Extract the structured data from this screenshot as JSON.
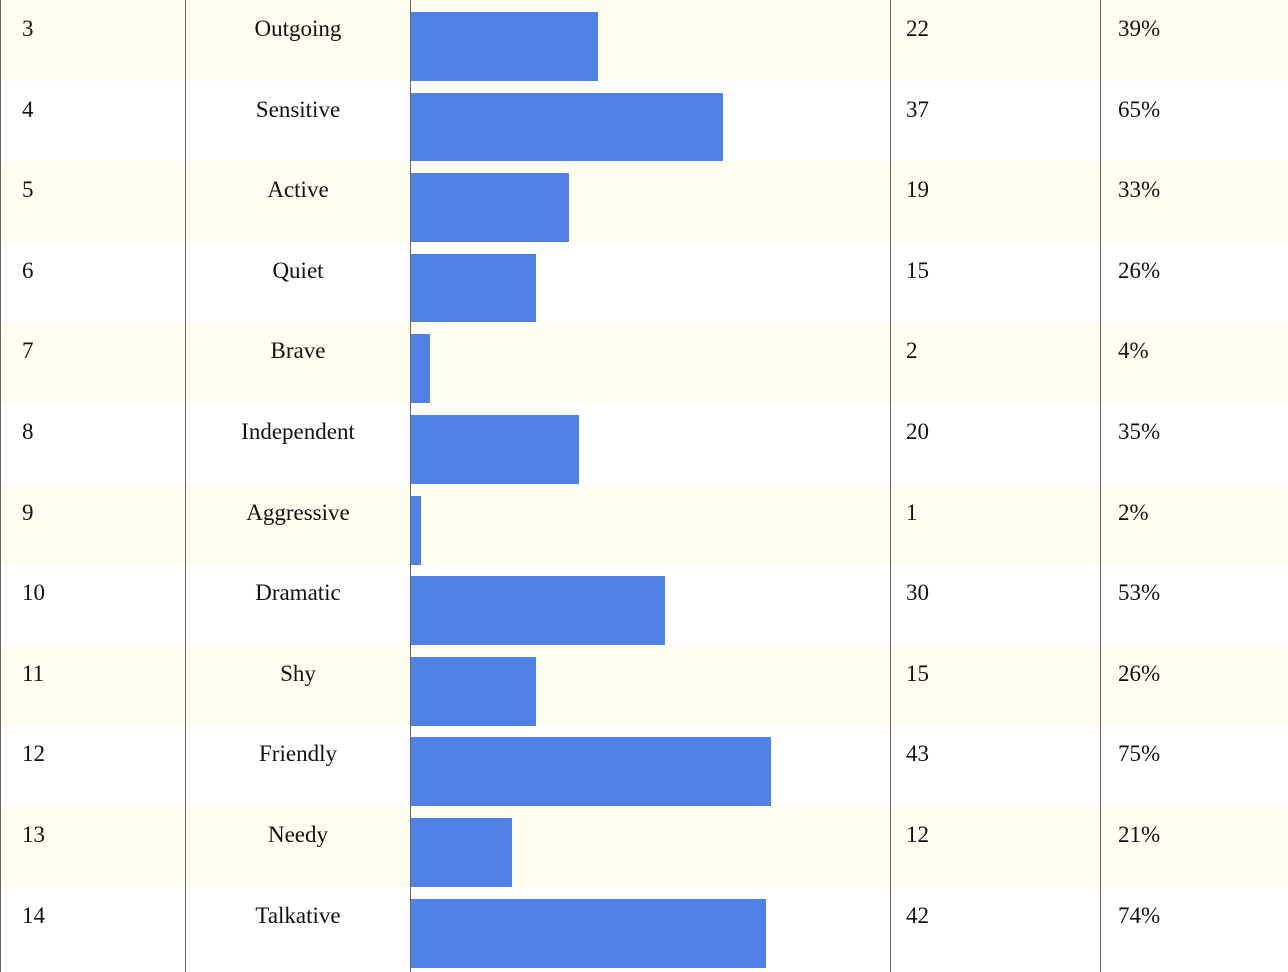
{
  "table": {
    "rows": [
      {
        "id": "3",
        "label": "Outgoing",
        "count": 22,
        "percent": 39,
        "percent_label": "39%"
      },
      {
        "id": "4",
        "label": "Sensitive",
        "count": 37,
        "percent": 65,
        "percent_label": "65%"
      },
      {
        "id": "5",
        "label": "Active",
        "count": 19,
        "percent": 33,
        "percent_label": "33%"
      },
      {
        "id": "6",
        "label": "Quiet",
        "count": 15,
        "percent": 26,
        "percent_label": "26%"
      },
      {
        "id": "7",
        "label": "Brave",
        "count": 2,
        "percent": 4,
        "percent_label": "4%"
      },
      {
        "id": "8",
        "label": "Independent",
        "count": 20,
        "percent": 35,
        "percent_label": "35%"
      },
      {
        "id": "9",
        "label": "Aggressive",
        "count": 1,
        "percent": 2,
        "percent_label": "2%"
      },
      {
        "id": "10",
        "label": "Dramatic",
        "count": 30,
        "percent": 53,
        "percent_label": "53%"
      },
      {
        "id": "11",
        "label": "Shy",
        "count": 15,
        "percent": 26,
        "percent_label": "26%"
      },
      {
        "id": "12",
        "label": "Friendly",
        "count": 43,
        "percent": 75,
        "percent_label": "75%"
      },
      {
        "id": "13",
        "label": "Needy",
        "count": 12,
        "percent": 21,
        "percent_label": "21%"
      },
      {
        "id": "14",
        "label": "Talkative",
        "count": 42,
        "percent": 74,
        "percent_label": "74%"
      }
    ]
  }
}
